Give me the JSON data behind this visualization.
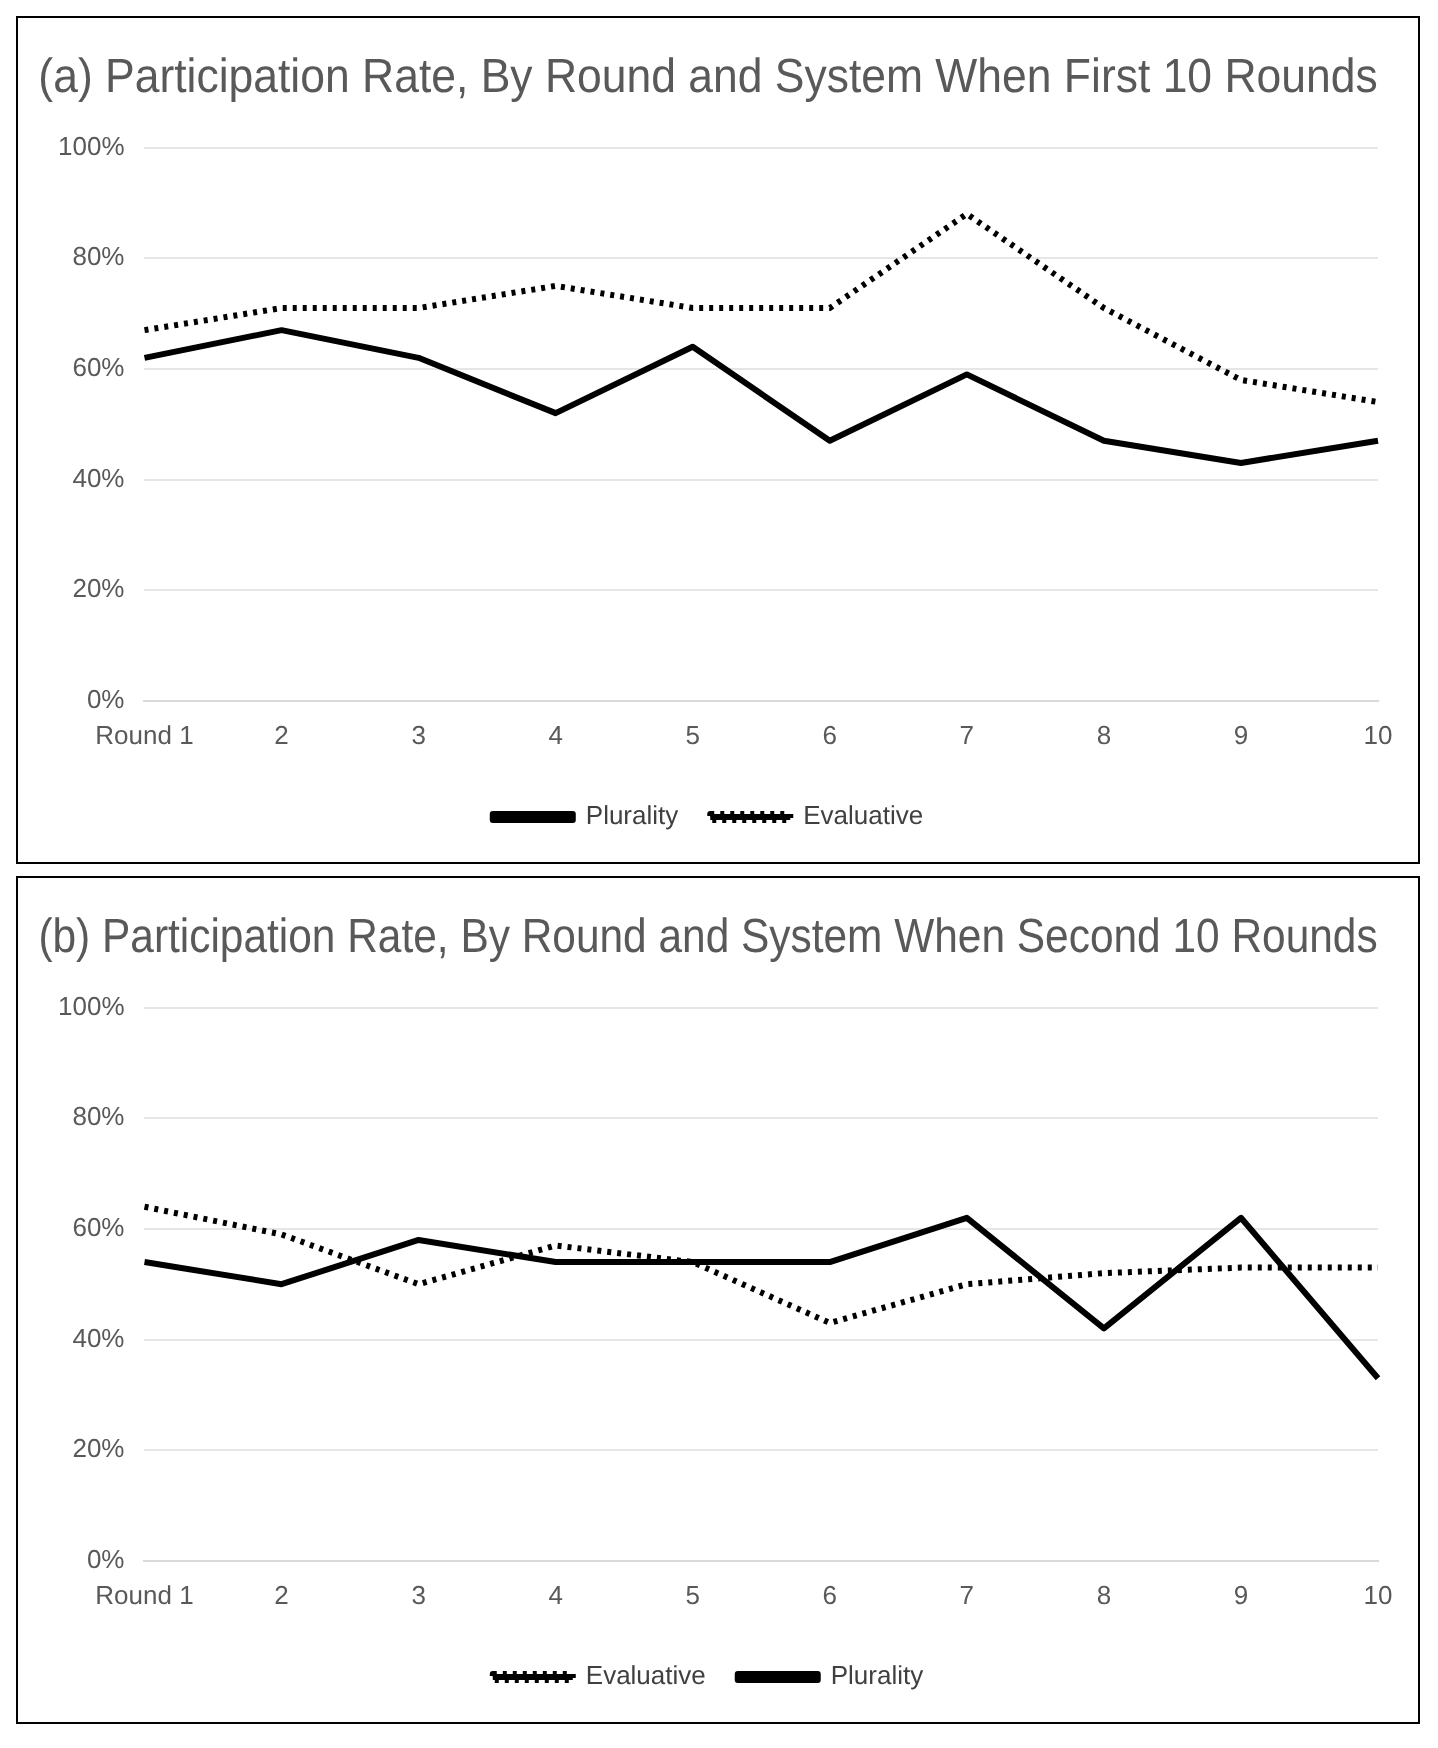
{
  "chart_data": [
    {
      "type": "line",
      "title": "(a) Participation Rate, By Round and System When First 10 Rounds",
      "categories": [
        "Round 1",
        "2",
        "3",
        "4",
        "5",
        "6",
        "7",
        "8",
        "9",
        "10"
      ],
      "series": [
        {
          "name": "Plurality",
          "color": "#000000",
          "line_style": "solid",
          "values": [
            62,
            67,
            62,
            52,
            64,
            47,
            59,
            47,
            43,
            47
          ]
        },
        {
          "name": "Evaluative",
          "color": "#000000",
          "line_style": "dotted",
          "values": [
            67,
            71,
            71,
            75,
            71,
            71,
            88,
            71,
            58,
            54
          ]
        }
      ],
      "ylim": [
        0,
        100
      ],
      "yticks": [
        {
          "value": 0,
          "label": "0%"
        },
        {
          "value": 20,
          "label": "20%"
        },
        {
          "value": 40,
          "label": "40%"
        },
        {
          "value": 60,
          "label": "60%"
        },
        {
          "value": 80,
          "label": "80%"
        },
        {
          "value": 100,
          "label": "100%"
        }
      ],
      "grid": "y",
      "legend": "bottom",
      "marker": "none"
    },
    {
      "type": "line",
      "title": "(b) Participation Rate, By Round and System When Second 10 Rounds",
      "categories": [
        "Round 1",
        "2",
        "3",
        "4",
        "5",
        "6",
        "7",
        "8",
        "9",
        "10"
      ],
      "series": [
        {
          "name": "Evaluative",
          "color": "#000000",
          "line_style": "dotted",
          "values": [
            64,
            59,
            50,
            57,
            54,
            43,
            50,
            52,
            53,
            53
          ]
        },
        {
          "name": "Plurality",
          "color": "#000000",
          "line_style": "solid",
          "values": [
            54,
            50,
            58,
            54,
            54,
            54,
            62,
            42,
            62,
            33
          ]
        }
      ],
      "ylim": [
        0,
        100
      ],
      "yticks": [
        {
          "value": 0,
          "label": "0%"
        },
        {
          "value": 20,
          "label": "20%"
        },
        {
          "value": 40,
          "label": "40%"
        },
        {
          "value": 60,
          "label": "60%"
        },
        {
          "value": 80,
          "label": "80%"
        },
        {
          "value": 100,
          "label": "100%"
        }
      ],
      "grid": "y",
      "legend": "bottom",
      "marker": "none"
    }
  ]
}
